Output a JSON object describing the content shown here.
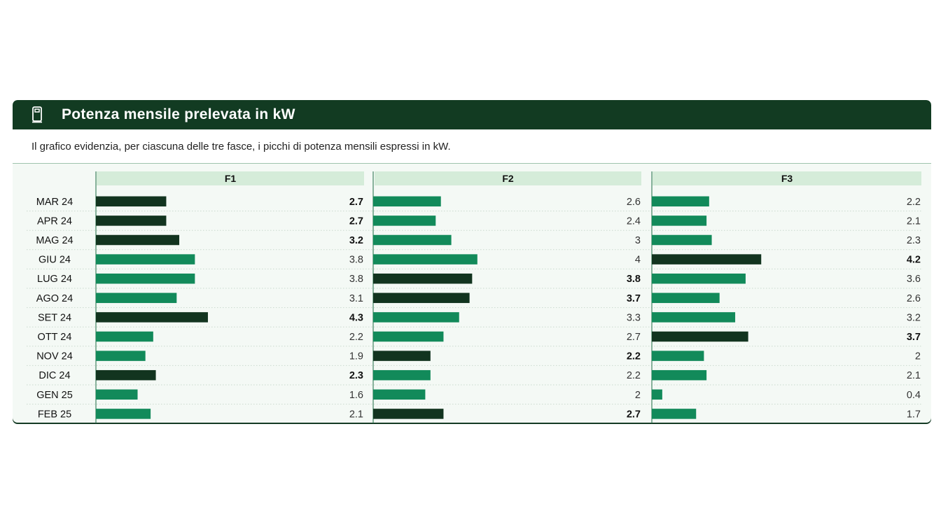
{
  "header": {
    "title": "Potenza mensile prelevata in kW",
    "subtitle": "Il grafico evidenzia, per ciascuna delle tre fasce, i picchi di potenza mensili espressi in kW."
  },
  "colors": {
    "header_bg": "#123b22",
    "bar_normal": "#128a5a",
    "bar_peak": "#12341f",
    "panel_header_bg": "#d5ecd9"
  },
  "chart_data": {
    "type": "bar",
    "orientation": "horizontal",
    "title": "Potenza mensile prelevata in kW",
    "unit": "kW",
    "categories": [
      "MAR 24",
      "APR 24",
      "MAG 24",
      "GIU 24",
      "LUG 24",
      "AGO 24",
      "SET 24",
      "OTT 24",
      "NOV 24",
      "DIC 24",
      "GEN 25",
      "FEB 25"
    ],
    "series": [
      {
        "name": "F1",
        "values": [
          2.7,
          2.7,
          3.2,
          3.8,
          3.8,
          3.1,
          4.3,
          2.2,
          1.9,
          2.3,
          1.6,
          2.1
        ],
        "highlight": [
          true,
          true,
          true,
          false,
          false,
          false,
          true,
          false,
          false,
          true,
          false,
          false
        ]
      },
      {
        "name": "F2",
        "values": [
          2.6,
          2.4,
          3,
          4,
          3.8,
          3.7,
          3.3,
          2.7,
          2.2,
          2.2,
          2,
          2.7
        ],
        "highlight": [
          false,
          false,
          false,
          false,
          true,
          true,
          false,
          false,
          true,
          false,
          false,
          true
        ]
      },
      {
        "name": "F3",
        "values": [
          2.2,
          2.1,
          2.3,
          4.2,
          3.6,
          2.6,
          3.2,
          3.7,
          2,
          2.1,
          0.4,
          1.7
        ],
        "highlight": [
          false,
          false,
          false,
          true,
          false,
          false,
          false,
          true,
          false,
          false,
          false,
          false
        ]
      }
    ],
    "xlim": [
      0,
      6.5
    ],
    "grid": false,
    "legend": "none"
  }
}
